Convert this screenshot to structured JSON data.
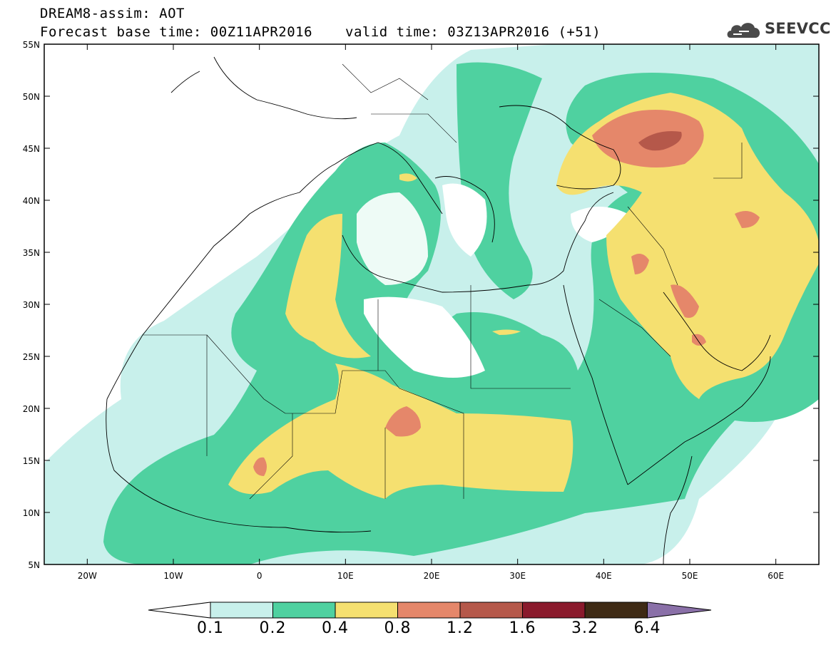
{
  "header": {
    "title_line1": "DREAM8-assim: AOT",
    "title_line2": "Forecast base time: 00Z11APR2016",
    "valid_time": "valid time: 03Z13APR2016 (+51)"
  },
  "logo": {
    "text": "SEEVCCC",
    "icon": "cloud-icon"
  },
  "map": {
    "lat_ticks": [
      "5N",
      "10N",
      "15N",
      "20N",
      "25N",
      "30N",
      "35N",
      "40N",
      "45N",
      "50N",
      "55N"
    ],
    "lon_ticks": [
      "20W",
      "10W",
      "0",
      "10E",
      "20E",
      "30E",
      "40E",
      "50E",
      "60E"
    ],
    "lon_range": [
      -25,
      65
    ],
    "lat_range": [
      5,
      55
    ]
  },
  "colorbar": {
    "colors": [
      "#ffffff",
      "#c8f0eb",
      "#4fd1a0",
      "#f5e070",
      "#e5876a",
      "#b5584a",
      "#8a1a2c",
      "#3e2a14",
      "#8a70a8"
    ],
    "labels": [
      "0.1",
      "0.2",
      "0.4",
      "0.8",
      "1.2",
      "1.6",
      "3.2",
      "6.4"
    ]
  }
}
